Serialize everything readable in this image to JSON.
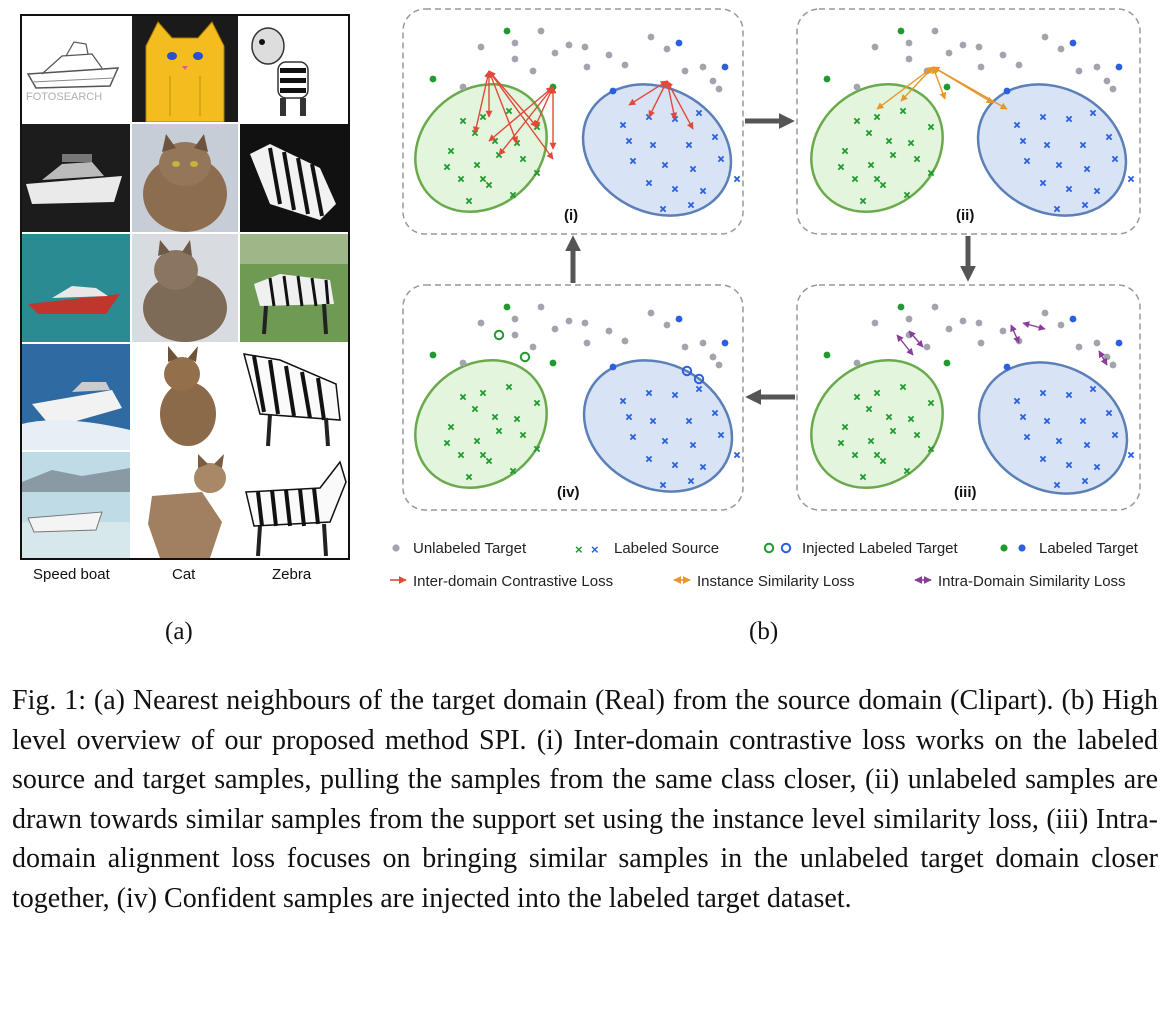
{
  "figure": {
    "grid_columns": [
      "Speed boat",
      "Cat",
      "Zebra"
    ],
    "watermark_text": "FOTOSEARCH",
    "subfigure_labels": {
      "a": "(a)",
      "b": "(b)"
    },
    "panels": {
      "i": "(i)",
      "ii": "(ii)",
      "iii": "(iii)",
      "iv": "(iv)"
    },
    "legend": {
      "unlabeled_target": "Unlabeled Target",
      "labeled_source": "Labeled Source",
      "injected_labeled_target": "Injected Labeled Target",
      "labeled_target": "Labeled Target",
      "inter_domain_loss": "Inter-domain Contrastive Loss",
      "instance_similarity_loss": "Instance Similarity Loss",
      "intra_domain_loss": "Intra-Domain Similarity Loss"
    },
    "colors": {
      "green_fill": "#e3f5dc",
      "green_stroke": "#6aaa4c",
      "green_mark": "#1f9a2e",
      "blue_fill": "#d8e4f6",
      "blue_stroke": "#5b7fb7",
      "blue_mark": "#2a5fe0",
      "gray_dot": "#a3a3ad",
      "red_arrow": "#e04a3a",
      "orange_arrow": "#e8962a",
      "purple_arrow": "#8a3c9c"
    }
  },
  "caption": "Fig. 1: (a) Nearest neighbours of the target domain (Real) from the source domain (Clipart). (b) High level overview of our proposed method SPI. (i) Inter-domain contrastive loss works on the labeled source and target samples, pulling the samples from the same class closer, (ii) unlabeled samples are drawn towards similar samples from the support set using the instance level similarity loss, (iii) Intra-domain alignment loss focuses on bringing similar samples in the unlabeled target domain closer together, (iv) Confident samples are injected into the labeled target dataset."
}
